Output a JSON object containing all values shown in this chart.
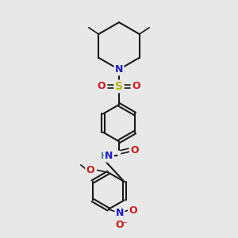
{
  "bg_color": "#e8e8e8",
  "bond_color": "#1a1a1a",
  "N_color": "#1a1acc",
  "O_color": "#cc1a1a",
  "S_color": "#b8b800",
  "NH_color": "#4a8888",
  "figsize": [
    3.0,
    3.0
  ],
  "dpi": 100,
  "xlim": [
    0,
    10
  ],
  "ylim": [
    0,
    10
  ]
}
